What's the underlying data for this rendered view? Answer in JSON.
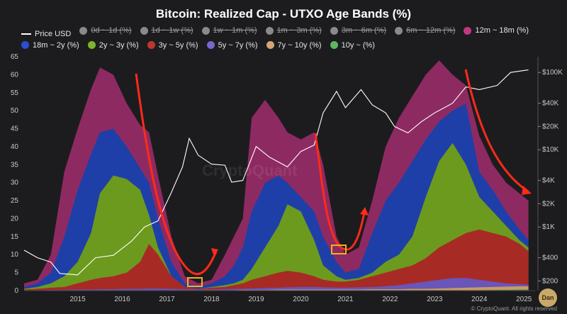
{
  "chart_data": {
    "type": "area",
    "title": "Bitcoin: Realized Cap - UTXO Age Bands (%)",
    "xlabel": "",
    "ylabel": "",
    "ylim": [
      0,
      65
    ],
    "yticks": [
      0,
      5,
      10,
      15,
      20,
      25,
      30,
      35,
      40,
      45,
      50,
      55,
      60,
      65
    ],
    "y2ticks": [
      "$200",
      "$400",
      "$1K",
      "$2K",
      "$4K",
      "$10K",
      "$20K",
      "$40K",
      "$100K"
    ],
    "xticks": [
      "2015",
      "2016",
      "2017",
      "2018",
      "2019",
      "2020",
      "2021",
      "2022",
      "2023",
      "2024",
      "2025"
    ],
    "x": [
      2014.3,
      2014.6,
      2014.9,
      2015.2,
      2015.5,
      2015.8,
      2016.0,
      2016.3,
      2016.6,
      2016.9,
      2017.1,
      2017.3,
      2017.6,
      2017.9,
      2018.2,
      2018.5,
      2018.8,
      2019.0,
      2019.2,
      2019.4,
      2019.7,
      2020.0,
      2020.2,
      2020.5,
      2020.8,
      2021.0,
      2021.3,
      2021.5,
      2021.8,
      2022.1,
      2022.4,
      2022.7,
      2023.0,
      2023.3,
      2023.6,
      2023.9,
      2024.2,
      2024.5,
      2024.8,
      2025.1,
      2025.4,
      2025.6
    ],
    "series": [
      {
        "name": "12m ~ 18m (%)",
        "color": "#8e2a62",
        "values": [
          2,
          3,
          10,
          33,
          45,
          56,
          62,
          60,
          52,
          46,
          44,
          32,
          15,
          4,
          2,
          3,
          10,
          15,
          20,
          48,
          53,
          48,
          44,
          42,
          44,
          35,
          15,
          10,
          12,
          25,
          40,
          48,
          54,
          60,
          64,
          60,
          57,
          43,
          35,
          30,
          27,
          25
        ]
      },
      {
        "name": "18m ~ 2y (%)",
        "color": "#1f3fa8",
        "values": [
          1,
          2,
          5,
          15,
          28,
          38,
          44,
          45,
          40,
          34,
          30,
          20,
          8,
          2,
          1,
          2,
          4,
          7,
          12,
          22,
          30,
          32,
          30,
          26,
          22,
          15,
          8,
          5,
          6,
          16,
          25,
          30,
          36,
          42,
          47,
          50,
          52,
          33,
          28,
          22,
          17,
          14
        ]
      },
      {
        "name": "2y ~ 3y (%)",
        "color": "#6c9a1e",
        "values": [
          0.5,
          1,
          2,
          4,
          8,
          16,
          27,
          32,
          31,
          28,
          21,
          12,
          4,
          1,
          0.5,
          1,
          1.5,
          2,
          3,
          6,
          12,
          18,
          24,
          22,
          14,
          7,
          4,
          3,
          3.5,
          5,
          8,
          10,
          15,
          26,
          36,
          41,
          35,
          26,
          22,
          18,
          14,
          12
        ]
      },
      {
        "name": "3y ~ 5y (%)",
        "color": "#a82a25",
        "values": [
          0.3,
          0.5,
          0.8,
          1,
          2,
          3,
          3.5,
          4,
          5,
          8,
          13,
          10,
          4,
          1,
          0.5,
          0.8,
          1,
          1.5,
          2,
          3,
          4,
          5,
          5.5,
          5,
          4,
          3,
          2.5,
          2.5,
          3,
          4,
          5,
          6,
          7,
          9,
          12,
          14,
          16,
          17,
          16,
          15,
          13,
          11
        ]
      },
      {
        "name": "5y ~ 7y (%)",
        "color": "#6a55b8",
        "values": [
          0.1,
          0.1,
          0.2,
          0.2,
          0.3,
          0.3,
          0.4,
          0.4,
          0.5,
          0.5,
          0.6,
          0.6,
          0.5,
          0.4,
          0.3,
          0.3,
          0.4,
          0.5,
          0.5,
          0.6,
          0.7,
          0.8,
          0.9,
          1,
          1,
          0.9,
          0.8,
          0.8,
          0.9,
          1,
          1.2,
          1.5,
          2,
          2.5,
          3,
          3.5,
          3.5,
          3,
          2.5,
          2,
          1.8,
          1.6
        ]
      },
      {
        "name": "7y ~ 10y (%)",
        "color": "#c89a6a",
        "values": [
          0,
          0,
          0,
          0,
          0,
          0,
          0,
          0,
          0,
          0,
          0,
          0.1,
          0.1,
          0.1,
          0.1,
          0.1,
          0.1,
          0.1,
          0.2,
          0.2,
          0.2,
          0.3,
          0.3,
          0.3,
          0.3,
          0.3,
          0.3,
          0.3,
          0.3,
          0.4,
          0.4,
          0.4,
          0.5,
          0.5,
          0.6,
          0.7,
          0.8,
          0.9,
          1,
          1.1,
          1.2,
          1.2
        ]
      },
      {
        "name": "10y ~ (%)",
        "color": "#4a9a4a",
        "values": [
          0,
          0,
          0,
          0,
          0,
          0,
          0,
          0,
          0,
          0,
          0,
          0,
          0,
          0,
          0,
          0,
          0,
          0,
          0,
          0,
          0,
          0,
          0,
          0,
          0,
          0,
          0,
          0,
          0,
          0,
          0,
          0,
          0,
          0,
          0,
          0,
          0.1,
          0.1,
          0.2,
          0.2,
          0.3,
          0.3
        ]
      }
    ],
    "price": {
      "name": "Price USD",
      "x": [
        2014.3,
        2014.6,
        2014.9,
        2015.1,
        2015.5,
        2015.9,
        2016.3,
        2016.7,
        2017.0,
        2017.3,
        2017.6,
        2017.85,
        2018.0,
        2018.2,
        2018.5,
        2018.8,
        2018.95,
        2019.2,
        2019.5,
        2019.8,
        2020.2,
        2020.5,
        2020.8,
        2021.0,
        2021.3,
        2021.5,
        2021.85,
        2022.1,
        2022.4,
        2022.6,
        2022.9,
        2023.2,
        2023.5,
        2023.9,
        2024.2,
        2024.5,
        2024.9,
        2025.2,
        2025.6
      ],
      "values": [
        500,
        400,
        350,
        250,
        240,
        400,
        430,
        650,
        1000,
        1200,
        2800,
        6000,
        14000,
        8500,
        6500,
        6300,
        3800,
        4000,
        11000,
        8000,
        6000,
        9500,
        11500,
        30000,
        57000,
        35000,
        60000,
        38000,
        30000,
        20000,
        16500,
        23000,
        30000,
        40000,
        65000,
        60000,
        68000,
        100000,
        108000
      ]
    },
    "legend": [
      {
        "label": "Price USD",
        "kind": "line",
        "color": "#ffffff",
        "visible": true
      },
      {
        "label": "0d ~ 1d (%)",
        "kind": "dot",
        "color": "#8a8a8a",
        "visible": false
      },
      {
        "label": "1d ~ 1w (%)",
        "kind": "dot",
        "color": "#8a8a8a",
        "visible": false
      },
      {
        "label": "1w ~ 1m (%)",
        "kind": "dot",
        "color": "#8a8a8a",
        "visible": false
      },
      {
        "label": "1m ~ 3m (%)",
        "kind": "dot",
        "color": "#8a8a8a",
        "visible": false
      },
      {
        "label": "3m ~ 6m (%)",
        "kind": "dot",
        "color": "#8a8a8a",
        "visible": false
      },
      {
        "label": "6m ~ 12m (%)",
        "kind": "dot",
        "color": "#8a8a8a",
        "visible": false
      },
      {
        "label": "12m ~ 18m (%)",
        "kind": "dot",
        "color": "#c2377f",
        "visible": true
      },
      {
        "label": "18m ~ 2y (%)",
        "kind": "dot",
        "color": "#2a4fd0",
        "visible": true
      },
      {
        "label": "2y ~ 3y (%)",
        "kind": "dot",
        "color": "#7fb52a",
        "visible": true
      },
      {
        "label": "3y ~ 5y (%)",
        "kind": "dot",
        "color": "#c0362e",
        "visible": true
      },
      {
        "label": "5y ~ 7y (%)",
        "kind": "dot",
        "color": "#7a66cc",
        "visible": true
      },
      {
        "label": "7y ~ 10y (%)",
        "kind": "dot",
        "color": "#d4a574",
        "visible": true
      },
      {
        "label": "10y ~ (%)",
        "kind": "dot",
        "color": "#5cb85c",
        "visible": true
      }
    ],
    "grid": false,
    "legend_placement": "top"
  },
  "watermark": "CryptoQuant",
  "footer": "© CryptoQuant. All rights reserved",
  "badge": "Dan"
}
